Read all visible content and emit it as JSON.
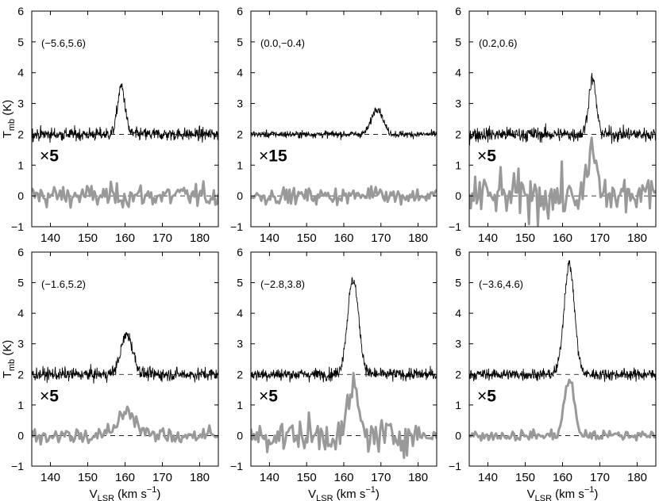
{
  "chart_data": {
    "type": "line",
    "layout": "2x3 grid of spectra panels",
    "xlabel": "V_LSR (km s^-1)",
    "xlabel_main": "V",
    "xlabel_sub": "LSR",
    "xlabel_unit": " (km s",
    "xlabel_unit_sup": "−1",
    "xlabel_close": ")",
    "ylabel": "T_mb (K)",
    "ylabel_main": "T",
    "ylabel_sub": "mb",
    "ylabel_unit": " (K)",
    "xlim": [
      135,
      185
    ],
    "ylim": [
      -1,
      6
    ],
    "xticks": [
      140,
      150,
      160,
      170,
      180
    ],
    "yticks": [
      -1,
      0,
      1,
      2,
      3,
      4,
      5,
      6
    ],
    "baselines": [
      2,
      0
    ],
    "colors": {
      "upper": "#000000",
      "lower": "#999999",
      "baseline": "#000000"
    },
    "series_info": [
      {
        "offset": 2,
        "style": "thin black line, noisy spectrum"
      },
      {
        "offset": 0,
        "style": "thick gray line, scaled spectrum"
      }
    ],
    "panels": [
      {
        "label": "(−5.6,5.6)",
        "scale": "×5",
        "upper": {
          "peak_v": 159.0,
          "peak_amp": 1.55,
          "width": 1.0,
          "noise": 0.18
        },
        "lower": {
          "peak_v": 159.0,
          "peak_amp": 0.0,
          "width": 1.5,
          "noise": 0.32
        }
      },
      {
        "label": "(0.0,−0.4)",
        "scale": "×15",
        "upper": {
          "peak_v": 169.0,
          "peak_amp": 0.85,
          "width": 1.5,
          "noise": 0.1
        },
        "lower": {
          "peak_v": 169.0,
          "peak_amp": 0.2,
          "width": 1.5,
          "noise": 0.22
        }
      },
      {
        "label": "(0.2,0.6)",
        "scale": "×5",
        "upper": {
          "peak_v": 168.0,
          "peak_amp": 1.8,
          "width": 1.0,
          "noise": 0.2
        },
        "lower": {
          "peak_v": 168.0,
          "peak_amp": 1.5,
          "width": 1.0,
          "noise": 0.6
        }
      },
      {
        "label": "(−1.6,5.2)",
        "scale": "×5",
        "upper": {
          "peak_v": 160.5,
          "peak_amp": 1.3,
          "width": 1.6,
          "noise": 0.18
        },
        "lower": {
          "peak_v": 160.5,
          "peak_amp": 0.85,
          "width": 2.2,
          "noise": 0.25
        }
      },
      {
        "label": "(−2.8,3.8)",
        "scale": "×5",
        "upper": {
          "peak_v": 162.5,
          "peak_amp": 3.1,
          "width": 1.5,
          "noise": 0.17
        },
        "lower": {
          "peak_v": 162.5,
          "peak_amp": 1.6,
          "width": 1.3,
          "noise": 0.45
        }
      },
      {
        "label": "(−3.6,4.6)",
        "scale": "×5",
        "upper": {
          "peak_v": 161.8,
          "peak_amp": 3.6,
          "width": 1.4,
          "noise": 0.16
        },
        "lower": {
          "peak_v": 161.8,
          "peak_amp": 1.85,
          "width": 1.3,
          "noise": 0.15
        }
      }
    ]
  }
}
